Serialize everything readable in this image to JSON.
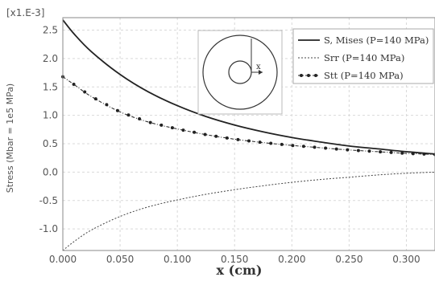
{
  "chart_data": {
    "type": "line",
    "xlabel": "x (cm)",
    "ylabel": "Stress (Mbar = 1e5 MPa)",
    "y_multiplier_label": "[x1.E-3]",
    "xlim": [
      0,
      0.325
    ],
    "ylim": [
      -1.38,
      2.72
    ],
    "x_ticks": [
      0.0,
      0.05,
      0.1,
      0.15,
      0.2,
      0.25,
      0.3
    ],
    "x_tick_labels": [
      "0.000",
      "0.050",
      "0.100",
      "0.150",
      "0.200",
      "0.250",
      "0.300"
    ],
    "y_ticks": [
      -1.0,
      -0.5,
      0.0,
      0.5,
      1.0,
      1.5,
      2.0,
      2.5
    ],
    "y_tick_labels": [
      "-1.0",
      "-0.5",
      "0.0",
      "0.5",
      "1.0",
      "1.5",
      "2.0",
      "2.5"
    ],
    "grid": true,
    "legend_position": "top-right",
    "inset_label": "x",
    "series": [
      {
        "name": "S, Mises (P=140 MPa)",
        "style": "solid",
        "color": "#222222",
        "x": [
          0.0,
          0.01,
          0.025,
          0.05,
          0.075,
          0.1,
          0.125,
          0.15,
          0.175,
          0.2,
          0.225,
          0.25,
          0.275,
          0.3,
          0.325
        ],
        "y": [
          2.68,
          2.43,
          2.12,
          1.72,
          1.41,
          1.17,
          0.98,
          0.83,
          0.71,
          0.61,
          0.53,
          0.46,
          0.41,
          0.36,
          0.32
        ]
      },
      {
        "name": "Srr (P=140 MPa)",
        "style": "dotted",
        "color": "#444444",
        "x": [
          0.0,
          0.01,
          0.025,
          0.05,
          0.075,
          0.1,
          0.125,
          0.15,
          0.175,
          0.2,
          0.225,
          0.25,
          0.275,
          0.3,
          0.325
        ],
        "y": [
          -1.38,
          -1.22,
          -1.02,
          -0.78,
          -0.61,
          -0.49,
          -0.39,
          -0.31,
          -0.24,
          -0.18,
          -0.13,
          -0.09,
          -0.05,
          -0.02,
          0.0
        ]
      },
      {
        "name": "Stt (P=140 MPa)",
        "style": "dash-dot-markers",
        "color": "#222222",
        "x": [
          0.0,
          0.01,
          0.025,
          0.05,
          0.075,
          0.1,
          0.125,
          0.15,
          0.175,
          0.2,
          0.225,
          0.25,
          0.275,
          0.3,
          0.325
        ],
        "y": [
          1.68,
          1.54,
          1.33,
          1.06,
          0.88,
          0.76,
          0.66,
          0.58,
          0.52,
          0.47,
          0.43,
          0.39,
          0.36,
          0.33,
          0.31
        ]
      }
    ]
  }
}
